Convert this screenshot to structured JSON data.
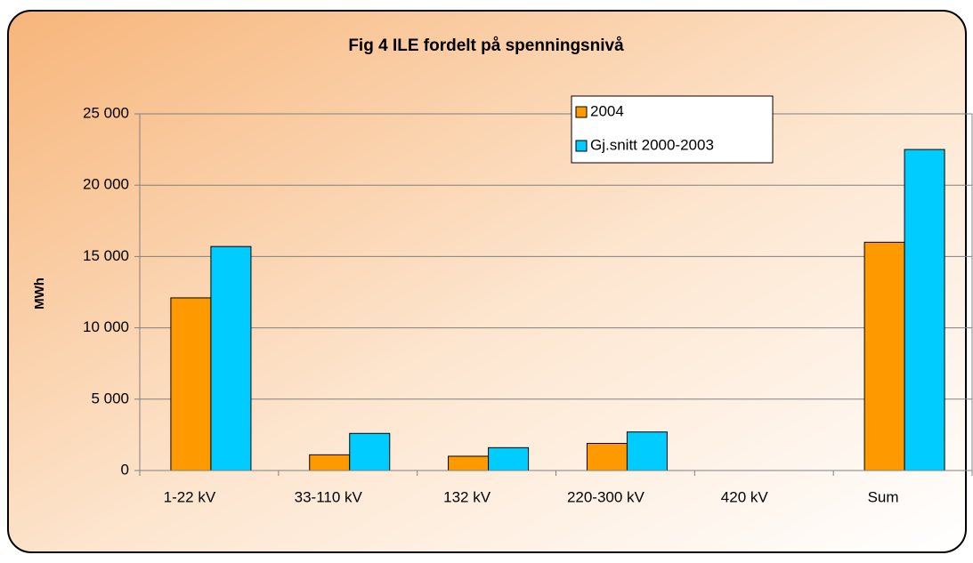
{
  "chart_data": {
    "type": "bar",
    "title": "Fig 4 ILE fordelt på spenningsnivå",
    "y_label": "MWh",
    "categories": [
      "1-22 kV",
      "33-110 kV",
      "132 kV",
      "220-300 kV",
      "420 kV",
      "Sum"
    ],
    "series": [
      {
        "name": "2004",
        "color": "#ff9900",
        "values": [
          12100,
          1100,
          1000,
          1900,
          0,
          16000
        ]
      },
      {
        "name": "Gj.snitt 2000-2003",
        "color": "#00ccff",
        "values": [
          15700,
          2600,
          1600,
          2700,
          0,
          22500
        ]
      }
    ],
    "ylim": [
      0,
      25000
    ],
    "yticks": [
      0,
      {
        "value": 5000,
        "label": "5 000"
      },
      {
        "value": 10000,
        "label": "10 000"
      },
      {
        "value": 15000,
        "label": "15 000"
      },
      {
        "value": 20000,
        "label": "20 000"
      },
      {
        "value": 25000,
        "label": "25 000"
      }
    ],
    "grid": true
  }
}
